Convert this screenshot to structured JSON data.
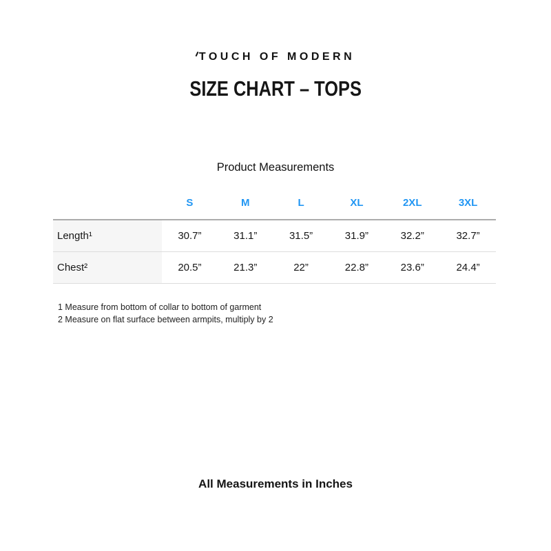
{
  "brand": {
    "logo_text": "TOUCH OF MODERN"
  },
  "title": "SIZE CHART – TOPS",
  "table": {
    "caption": "Product Measurements",
    "sizes": [
      "S",
      "M",
      "L",
      "XL",
      "2XL",
      "3XL"
    ],
    "rows": [
      {
        "label": "Length¹",
        "values": [
          "30.7”",
          "31.1”",
          "31.5”",
          "31.9”",
          "32.2”",
          "32.7”"
        ]
      },
      {
        "label": "Chest²",
        "values": [
          "20.5”",
          "21.3”",
          "22”",
          "22.8”",
          "23.6”",
          "24.4”"
        ]
      }
    ]
  },
  "footnotes": [
    "1 Measure from bottom of collar to bottom of garment",
    "2 Measure on flat surface between armpits, multiply by 2"
  ],
  "footer": "All Measurements in Inches",
  "colors": {
    "size_header_blue": "#2196f3",
    "label_column_background": "#f6f6f6",
    "table_top_border": "#ababab",
    "table_row_border": "#dcdcdc"
  },
  "chart_data": {
    "type": "table",
    "title": "Product Measurements",
    "columns": [
      "",
      "S",
      "M",
      "L",
      "XL",
      "2XL",
      "3XL"
    ],
    "rows": [
      [
        "Length¹",
        "30.7”",
        "31.1”",
        "31.5”",
        "31.9”",
        "32.2”",
        "32.7”"
      ],
      [
        "Chest²",
        "20.5”",
        "21.3”",
        "22”",
        "22.8”",
        "23.6”",
        "24.4”"
      ]
    ],
    "units": "inches"
  }
}
